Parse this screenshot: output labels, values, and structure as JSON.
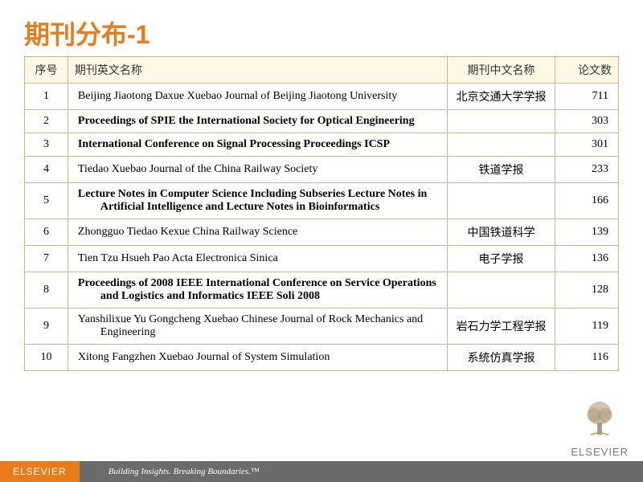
{
  "title": "期刊分布-1",
  "columns": [
    "序号",
    "期刊英文名称",
    "期刊中文名称",
    "论文数"
  ],
  "rows": [
    {
      "num": "1",
      "en": "Beijing Jiaotong Daxue Xuebao Journal of Beijing Jiaotong University",
      "cn": "北京交通大学学报",
      "count": "711",
      "bold": false
    },
    {
      "num": "2",
      "en": "Proceedings of SPIE the International Society for Optical Engineering",
      "cn": "",
      "count": "303",
      "bold": true
    },
    {
      "num": "3",
      "en": "International Conference on Signal Processing Proceedings ICSP",
      "cn": "",
      "count": "301",
      "bold": true
    },
    {
      "num": "4",
      "en": "Tiedao Xuebao Journal of the China Railway Society",
      "cn": "铁道学报",
      "count": "233",
      "bold": false
    },
    {
      "num": "5",
      "en": "Lecture Notes in Computer Science Including Subseries Lecture Notes in Artificial Intelligence and Lecture Notes in Bioinformatics",
      "cn": "",
      "count": "166",
      "bold": true
    },
    {
      "num": "6",
      "en": "Zhongguo Tiedao Kexue China Railway Science",
      "cn": "中国铁道科学",
      "count": "139",
      "bold": false
    },
    {
      "num": "7",
      "en": "Tien Tzu Hsueh Pao Acta Electronica Sinica",
      "cn": "电子学报",
      "count": "136",
      "bold": false
    },
    {
      "num": "8",
      "en": "Proceedings of 2008 IEEE International Conference on Service Operations and Logistics and Informatics IEEE Soli 2008",
      "cn": "",
      "count": "128",
      "bold": true
    },
    {
      "num": "9",
      "en": "Yanshilixue Yu Gongcheng Xuebao Chinese Journal of Rock Mechanics and Engineering",
      "cn": "岩石力学工程学报",
      "count": "119",
      "bold": false
    },
    {
      "num": "10",
      "en": "Xitong Fangzhen Xuebao Journal of System Simulation",
      "cn": "系统仿真学报",
      "count": "116",
      "bold": false
    }
  ],
  "footer": {
    "brand": "ELSEVIER",
    "tagline": "Building Insights. Breaking Boundaries.™"
  },
  "logo_text": "ELSEVIER",
  "colors": {
    "accent": "#e97c1a",
    "border": "#c8b890",
    "header_bg": "#fff7e6",
    "footer_bg": "#6b6b6b"
  }
}
